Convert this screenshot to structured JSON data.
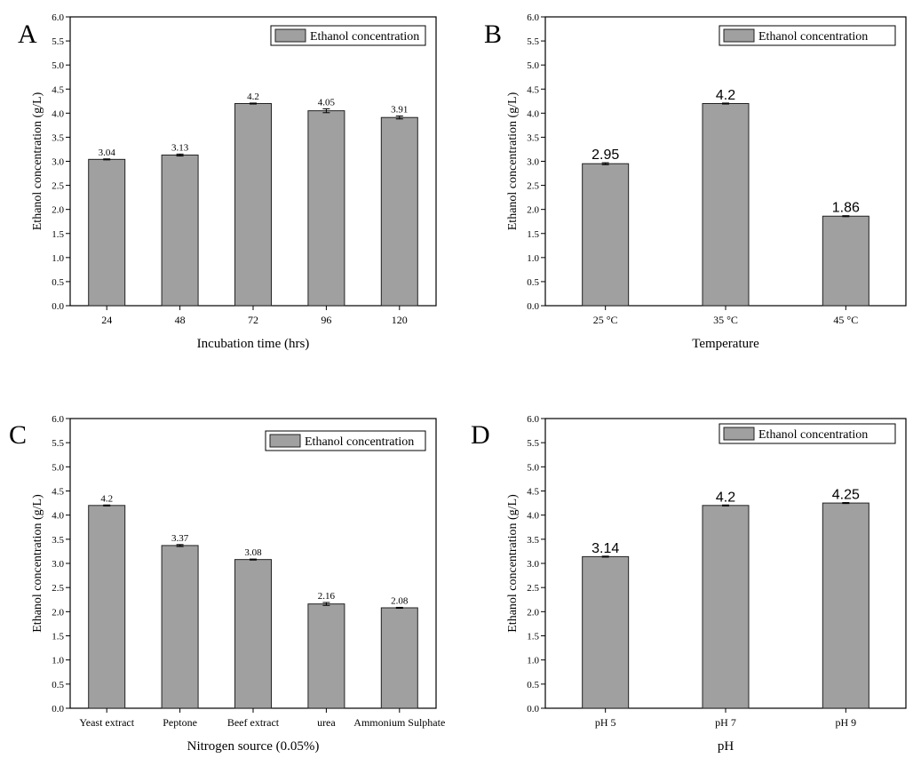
{
  "colors": {
    "bar": "#a0a0a0",
    "bar_stroke": "#222222",
    "axis": "#000000",
    "background": "#ffffff"
  },
  "chart_data": [
    {
      "panel": "A",
      "type": "bar",
      "categories": [
        "24",
        "48",
        "72",
        "96",
        "120"
      ],
      "values": [
        3.04,
        3.13,
        4.2,
        4.05,
        3.91
      ],
      "error": [
        0.01,
        0.02,
        0.01,
        0.04,
        0.03
      ],
      "data_labels": [
        "3.04",
        "3.13",
        "4.2",
        "4.05",
        "3.91"
      ],
      "series": [
        {
          "name": "Ethanol concentration",
          "values": [
            3.04,
            3.13,
            4.2,
            4.05,
            3.91
          ]
        }
      ],
      "xlabel": "Incubation time (hrs)",
      "ylabel": "Ethanol concentration (g/L)",
      "ylim": [
        0,
        6
      ],
      "yticks": [
        "0.0",
        "0.5",
        "1.0",
        "1.5",
        "2.0",
        "2.5",
        "3.0",
        "3.5",
        "4.0",
        "4.5",
        "5.0",
        "5.5",
        "6.0"
      ],
      "legend_position": "top-right",
      "label_font": "serif"
    },
    {
      "panel": "B",
      "type": "bar",
      "categories": [
        "25 °C",
        "35 °C",
        "45 °C"
      ],
      "values": [
        2.95,
        4.2,
        1.86
      ],
      "error": [
        0.02,
        0.01,
        0.01
      ],
      "data_labels": [
        "2.95",
        "4.2",
        "1.86"
      ],
      "series": [
        {
          "name": "Ethanol concentration",
          "values": [
            2.95,
            4.2,
            1.86
          ]
        }
      ],
      "xlabel": "Temperature",
      "ylabel": "Ethanol concentration (g/L)",
      "ylim": [
        0,
        6
      ],
      "yticks": [
        "0.0",
        "0.5",
        "1.0",
        "1.5",
        "2.0",
        "2.5",
        "3.0",
        "3.5",
        "4.0",
        "4.5",
        "5.0",
        "5.5",
        "6.0"
      ],
      "legend_position": "top-right",
      "label_font": "sans"
    },
    {
      "panel": "C",
      "type": "bar",
      "categories": [
        "Yeast extract",
        "Peptone",
        "Beef extract",
        "urea",
        "Ammonium Sulphate"
      ],
      "values": [
        4.2,
        3.37,
        3.08,
        2.16,
        2.08
      ],
      "error": [
        0.01,
        0.02,
        0.01,
        0.03,
        0.01
      ],
      "data_labels": [
        "4.2",
        "3.37",
        "3.08",
        "2.16",
        "2.08"
      ],
      "series": [
        {
          "name": "Ethanol concentration",
          "values": [
            4.2,
            3.37,
            3.08,
            2.16,
            2.08
          ]
        }
      ],
      "xlabel": "Nitrogen source (0.05%)",
      "ylabel": "Ethanol concentration (g/L)",
      "ylim": [
        0,
        6
      ],
      "yticks": [
        "0.0",
        "0.5",
        "1.0",
        "1.5",
        "2.0",
        "2.5",
        "3.0",
        "3.5",
        "4.0",
        "4.5",
        "5.0",
        "5.5",
        "6.0"
      ],
      "legend_position": "top-right",
      "label_font": "serif"
    },
    {
      "panel": "D",
      "type": "bar",
      "categories": [
        "pH 5",
        "pH 7",
        "pH 9"
      ],
      "values": [
        3.14,
        4.2,
        4.25
      ],
      "error": [
        0.01,
        0.01,
        0.01
      ],
      "data_labels": [
        "3.14",
        "4.2",
        "4.25"
      ],
      "series": [
        {
          "name": "Ethanol concentration",
          "values": [
            3.14,
            4.2,
            4.25
          ]
        }
      ],
      "xlabel": "pH",
      "ylabel": "Ethanol concentration (g/L)",
      "ylim": [
        0,
        6
      ],
      "yticks": [
        "0.0",
        "0.5",
        "1.0",
        "1.5",
        "2.0",
        "2.5",
        "3.0",
        "3.5",
        "4.0",
        "4.5",
        "5.0",
        "5.5",
        "6.0"
      ],
      "legend_position": "top-right",
      "label_font": "sans"
    }
  ]
}
